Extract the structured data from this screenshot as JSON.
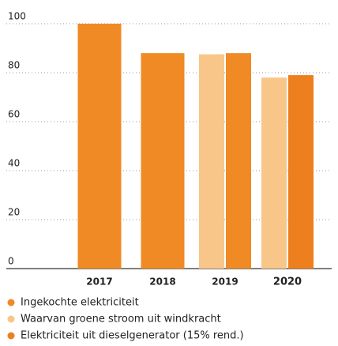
{
  "chart_data": {
    "type": "bar",
    "categories": [
      "2017",
      "2018",
      "2019",
      "2020"
    ],
    "series": [
      {
        "name": "Ingekochte elektriciteit",
        "color": "#f08a24",
        "values": [
          100,
          88,
          88,
          null
        ]
      },
      {
        "name": "Waarvan groene stroom uit windkracht",
        "color": "#f8c688",
        "values": [
          null,
          null,
          87.5,
          78
        ]
      },
      {
        "name": "Elektriciteit uit dieselgenerator (15% rend.)",
        "color": "#ee7f1e",
        "values": [
          null,
          null,
          null,
          79
        ]
      }
    ],
    "ylim": [
      0,
      100
    ],
    "yticks": [
      0,
      20,
      40,
      60,
      80,
      100
    ],
    "grid": true
  }
}
